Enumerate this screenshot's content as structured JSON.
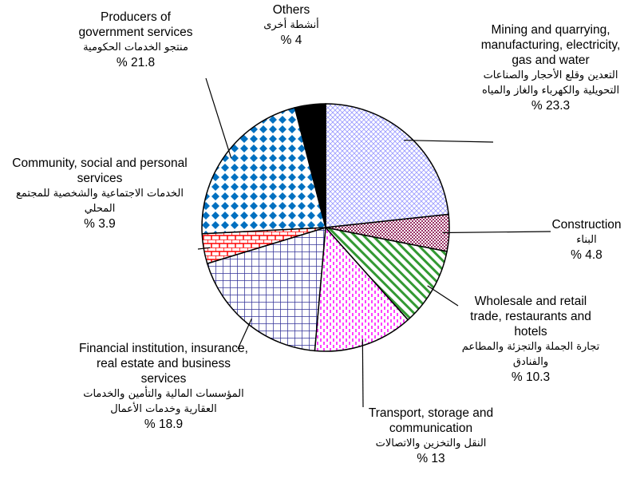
{
  "chart_data": {
    "type": "pie",
    "categories": [
      "Mining and quarrying, manufacturing, electricity, gas and water",
      "Construction",
      "Wholesale and retail trade, restaurants and hotels",
      "Transport, storage and communication",
      "Financial institution, insurance, real estate and business services",
      "Community, social and personal services",
      "Producers of government services",
      "Others"
    ],
    "categories_ar": [
      "التعدين وقلع الأحجار والصناعات التحويلية والكهرباء والغاز والمياه",
      "البناء",
      "تجارة الجملة والتجزئة والمطاعم والفنادق",
      "النقل والتخزين والاتصالات",
      "المؤسسات المالية والتأمين والخدمات العقارية وخدمات الأعمال",
      "الخدمات الاجتماعية والشخصية للمجتمع المحلي",
      "منتجو الخدمات الحكومية",
      "أنشطة أخرى"
    ],
    "values": [
      23.3,
      4.8,
      10.3,
      13,
      18.9,
      3.9,
      21.8,
      4
    ],
    "value_labels": [
      "% 23.3",
      "% 4.8",
      "% 10.3",
      "% 13",
      "% 18.9",
      "% 3.9",
      "% 21.8",
      "% 4"
    ],
    "colors": [
      "#9999ff",
      "#993366",
      "#339933",
      "#ff00ff",
      "#333399",
      "#ff0000",
      "#0070c0",
      "#000000"
    ],
    "patterns": [
      "crosshatch",
      "checks",
      "stripes",
      "dashes",
      "grid",
      "bricks",
      "diamonds",
      "solid"
    ]
  }
}
